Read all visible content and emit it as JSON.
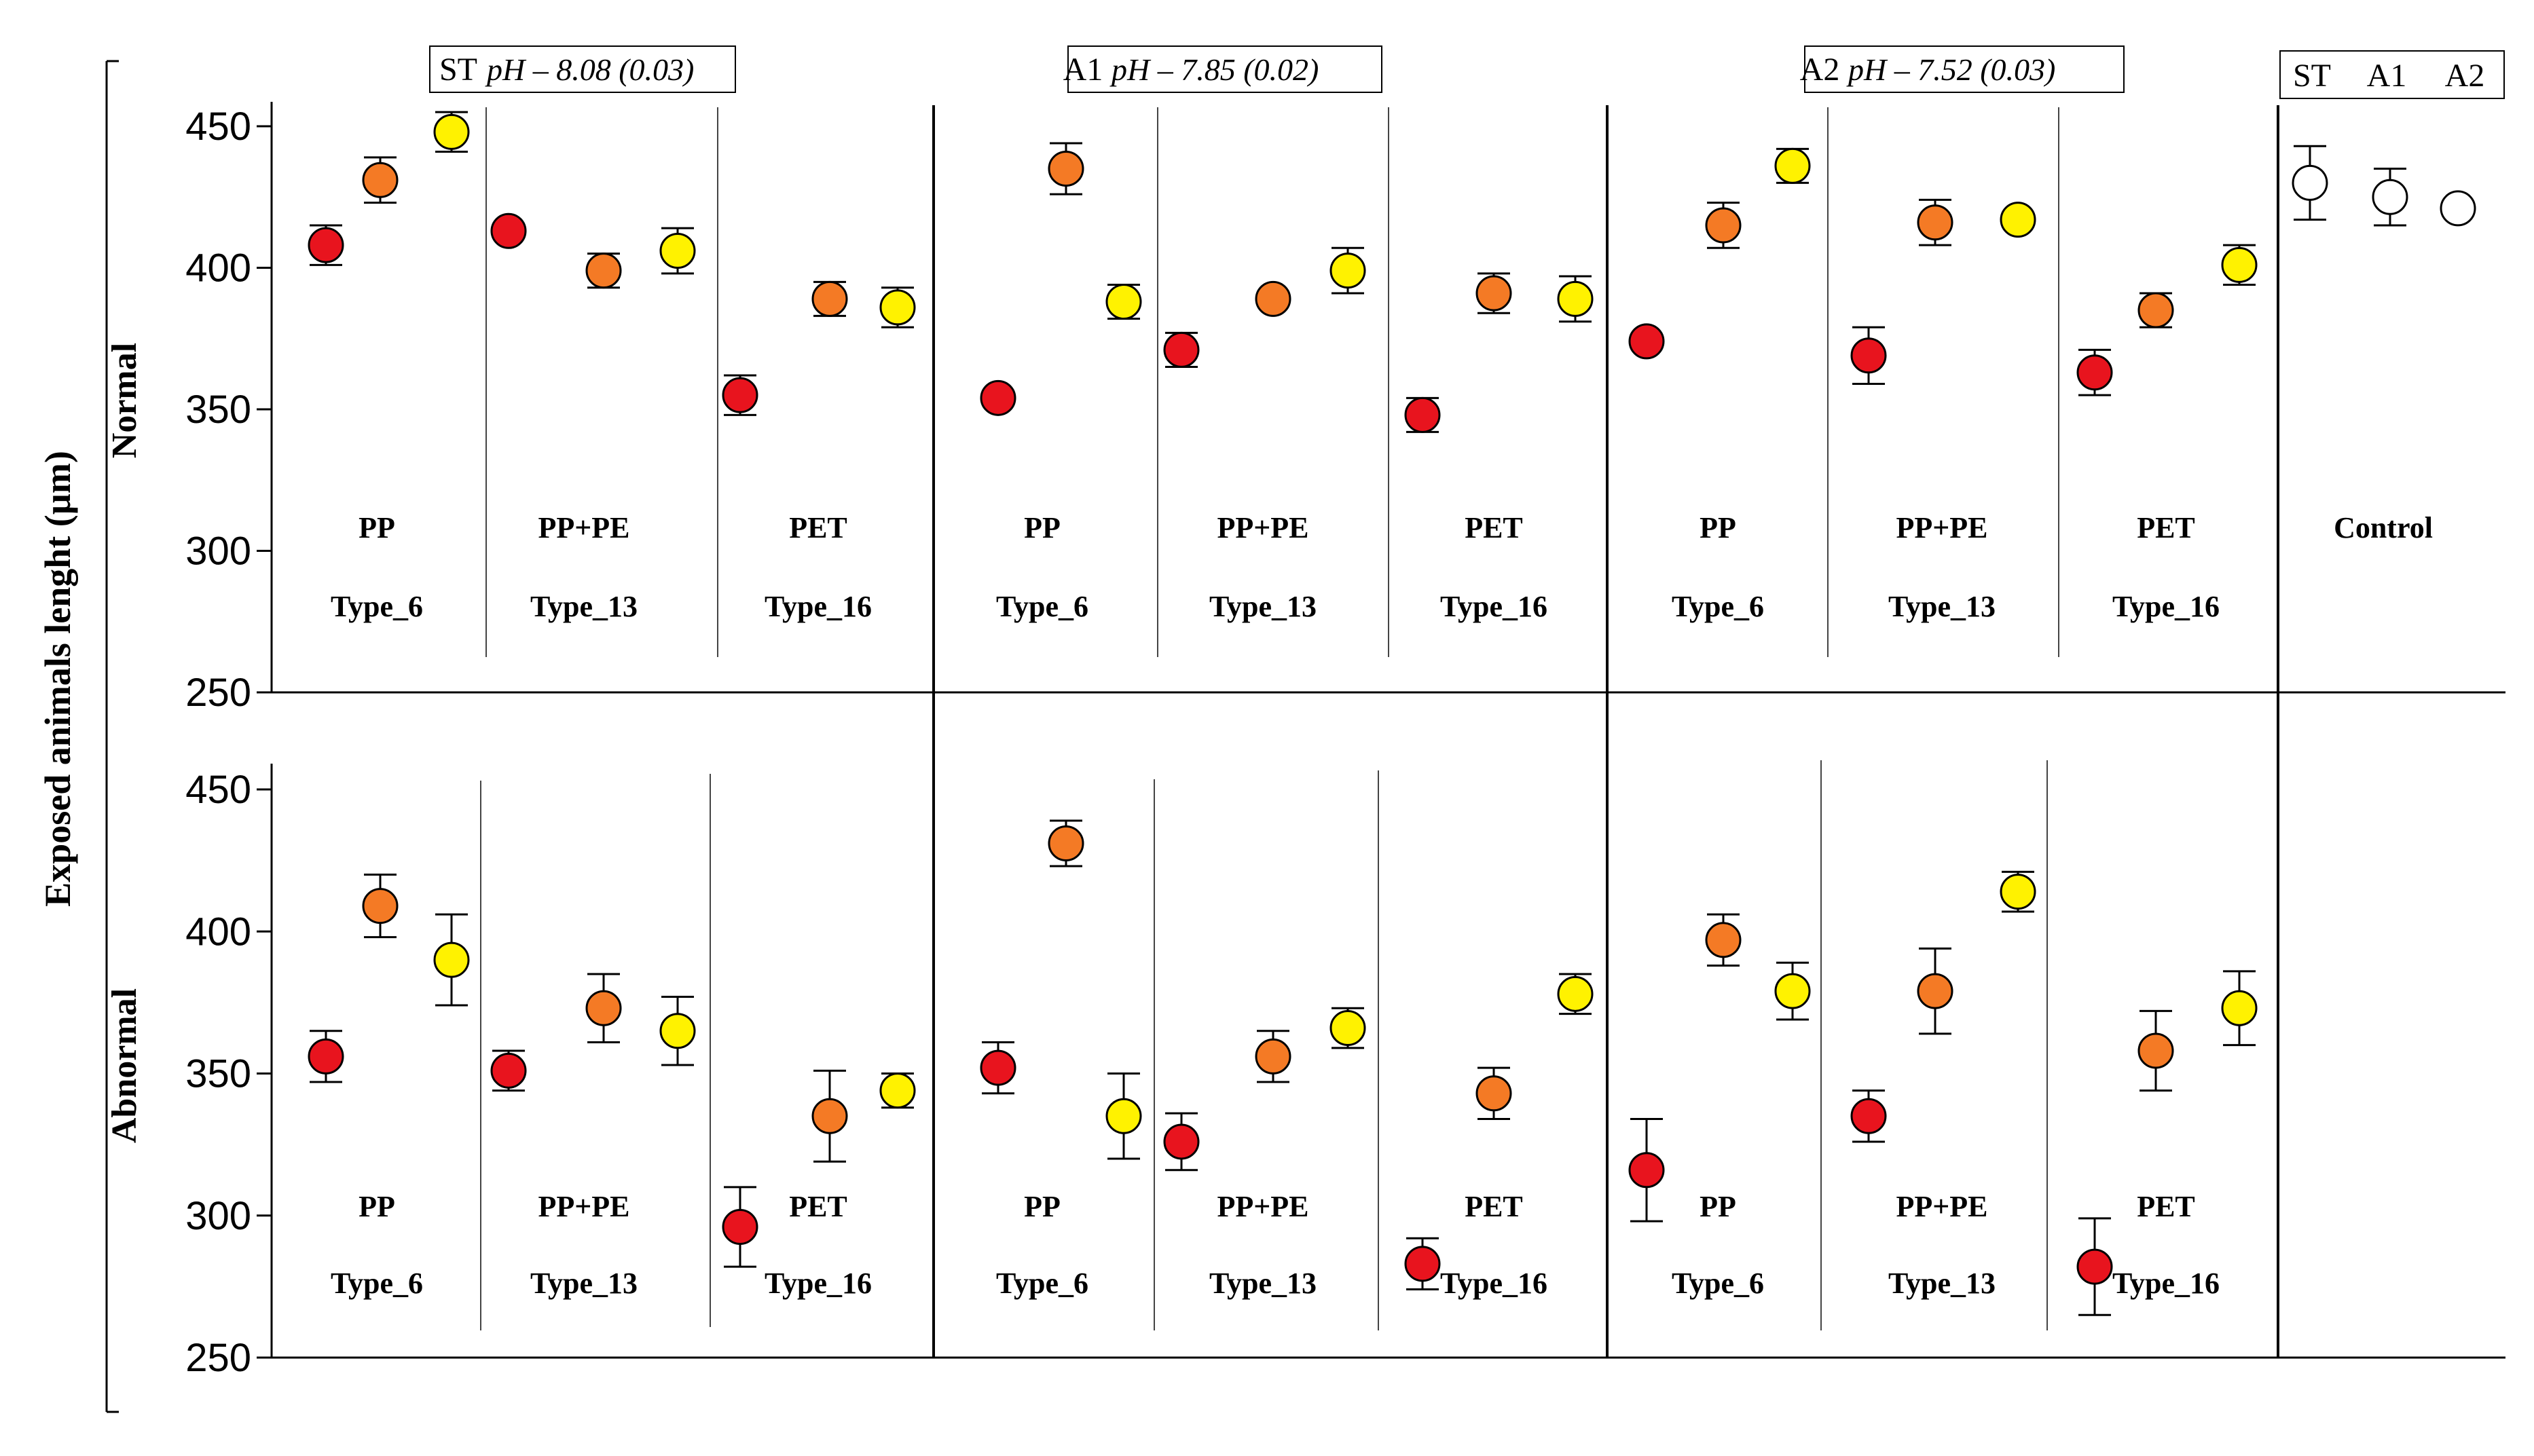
{
  "chart_data": {
    "type": "scatter",
    "y_label": "Exposed animals   lenght (µm)",
    "y_axis": {
      "min": 250,
      "max": 450,
      "ticks": [
        250,
        300,
        350,
        400,
        450
      ]
    },
    "colors": {
      "red": "#e8141e",
      "orange": "#f47a25",
      "yellow": "#fff200",
      "white": "#ffffff"
    },
    "treatments": [
      {
        "code": "ST",
        "ph_text": "pH – 8.08 (0.03)"
      },
      {
        "code": "A1",
        "ph_text": "pH – 7.85 (0.02)"
      },
      {
        "code": "A2",
        "ph_text": "pH – 7.52 (0.03)"
      }
    ],
    "polymers": [
      {
        "name": "PP",
        "type": "Type_6"
      },
      {
        "name": "PP+PE",
        "type": "Type_13"
      },
      {
        "name": "PET",
        "type": "Type_16"
      }
    ],
    "control": {
      "label": "Control",
      "codes": [
        "ST",
        "A1",
        "A2"
      ]
    },
    "rows": [
      {
        "label": "Normal",
        "groups": [
          {
            "treatment": "ST",
            "polymer": "PP",
            "points": [
              {
                "color": "red",
                "value": 408,
                "err": 7
              },
              {
                "color": "orange",
                "value": 431,
                "err": 8
              },
              {
                "color": "yellow",
                "value": 448,
                "err": 7
              }
            ]
          },
          {
            "treatment": "ST",
            "polymer": "PP+PE",
            "points": [
              {
                "color": "red",
                "value": 413,
                "err": 0
              },
              {
                "color": "orange",
                "value": 399,
                "err": 6
              },
              {
                "color": "yellow",
                "value": 406,
                "err": 8
              }
            ]
          },
          {
            "treatment": "ST",
            "polymer": "PET",
            "points": [
              {
                "color": "red",
                "value": 355,
                "err": 7
              },
              {
                "color": "orange",
                "value": 389,
                "err": 6
              },
              {
                "color": "yellow",
                "value": 386,
                "err": 7
              }
            ]
          },
          {
            "treatment": "A1",
            "polymer": "PP",
            "points": [
              {
                "color": "red",
                "value": 354,
                "err": 0
              },
              {
                "color": "orange",
                "value": 435,
                "err": 9
              },
              {
                "color": "yellow",
                "value": 388,
                "err": 6
              }
            ]
          },
          {
            "treatment": "A1",
            "polymer": "PP+PE",
            "points": [
              {
                "color": "red",
                "value": 371,
                "err": 6
              },
              {
                "color": "orange",
                "value": 389,
                "err": 0
              },
              {
                "color": "yellow",
                "value": 399,
                "err": 8
              }
            ]
          },
          {
            "treatment": "A1",
            "polymer": "PET",
            "points": [
              {
                "color": "red",
                "value": 348,
                "err": 6
              },
              {
                "color": "orange",
                "value": 391,
                "err": 7
              },
              {
                "color": "yellow",
                "value": 389,
                "err": 8
              }
            ]
          },
          {
            "treatment": "A2",
            "polymer": "PP",
            "points": [
              {
                "color": "red",
                "value": 374,
                "err": 0
              },
              {
                "color": "orange",
                "value": 415,
                "err": 8
              },
              {
                "color": "yellow",
                "value": 436,
                "err": 6
              }
            ]
          },
          {
            "treatment": "A2",
            "polymer": "PP+PE",
            "points": [
              {
                "color": "red",
                "value": 369,
                "err": 10
              },
              {
                "color": "orange",
                "value": 416,
                "err": 8
              },
              {
                "color": "yellow",
                "value": 417,
                "err": 0
              }
            ]
          },
          {
            "treatment": "A2",
            "polymer": "PET",
            "points": [
              {
                "color": "red",
                "value": 363,
                "err": 8
              },
              {
                "color": "orange",
                "value": 385,
                "err": 6
              },
              {
                "color": "yellow",
                "value": 401,
                "err": 7
              }
            ]
          }
        ],
        "control_points": [
          {
            "color": "white",
            "value": 430,
            "err": 13
          },
          {
            "color": "white",
            "value": 425,
            "err": 10
          },
          {
            "color": "white",
            "value": 421,
            "err": 0
          }
        ]
      },
      {
        "label": "Abnormal",
        "groups": [
          {
            "treatment": "ST",
            "polymer": "PP",
            "points": [
              {
                "color": "red",
                "value": 356,
                "err": 9
              },
              {
                "color": "orange",
                "value": 409,
                "err": 11
              },
              {
                "color": "yellow",
                "value": 390,
                "err": 16
              }
            ]
          },
          {
            "treatment": "ST",
            "polymer": "PP+PE",
            "points": [
              {
                "color": "red",
                "value": 351,
                "err": 7
              },
              {
                "color": "orange",
                "value": 373,
                "err": 12
              },
              {
                "color": "yellow",
                "value": 365,
                "err": 12
              }
            ]
          },
          {
            "treatment": "ST",
            "polymer": "PET",
            "points": [
              {
                "color": "red",
                "value": 296,
                "err": 14
              },
              {
                "color": "orange",
                "value": 335,
                "err": 16
              },
              {
                "color": "yellow",
                "value": 344,
                "err": 6
              }
            ]
          },
          {
            "treatment": "A1",
            "polymer": "PP",
            "points": [
              {
                "color": "red",
                "value": 352,
                "err": 9
              },
              {
                "color": "orange",
                "value": 431,
                "err": 8
              },
              {
                "color": "yellow",
                "value": 335,
                "err": 15
              }
            ]
          },
          {
            "treatment": "A1",
            "polymer": "PP+PE",
            "points": [
              {
                "color": "red",
                "value": 326,
                "err": 10
              },
              {
                "color": "orange",
                "value": 356,
                "err": 9
              },
              {
                "color": "yellow",
                "value": 366,
                "err": 7
              }
            ]
          },
          {
            "treatment": "A1",
            "polymer": "PET",
            "points": [
              {
                "color": "red",
                "value": 283,
                "err": 9
              },
              {
                "color": "orange",
                "value": 343,
                "err": 9
              },
              {
                "color": "yellow",
                "value": 378,
                "err": 7
              }
            ]
          },
          {
            "treatment": "A2",
            "polymer": "PP",
            "points": [
              {
                "color": "red",
                "value": 316,
                "err": 18
              },
              {
                "color": "orange",
                "value": 397,
                "err": 9
              },
              {
                "color": "yellow",
                "value": 379,
                "err": 10
              }
            ]
          },
          {
            "treatment": "A2",
            "polymer": "PP+PE",
            "points": [
              {
                "color": "red",
                "value": 335,
                "err": 9
              },
              {
                "color": "orange",
                "value": 379,
                "err": 15
              },
              {
                "color": "yellow",
                "value": 414,
                "err": 7
              }
            ]
          },
          {
            "treatment": "A2",
            "polymer": "PET",
            "points": [
              {
                "color": "red",
                "value": 282,
                "err": 17
              },
              {
                "color": "orange",
                "value": 358,
                "err": 14
              },
              {
                "color": "yellow",
                "value": 373,
                "err": 13
              }
            ]
          }
        ],
        "control_points": []
      }
    ]
  }
}
